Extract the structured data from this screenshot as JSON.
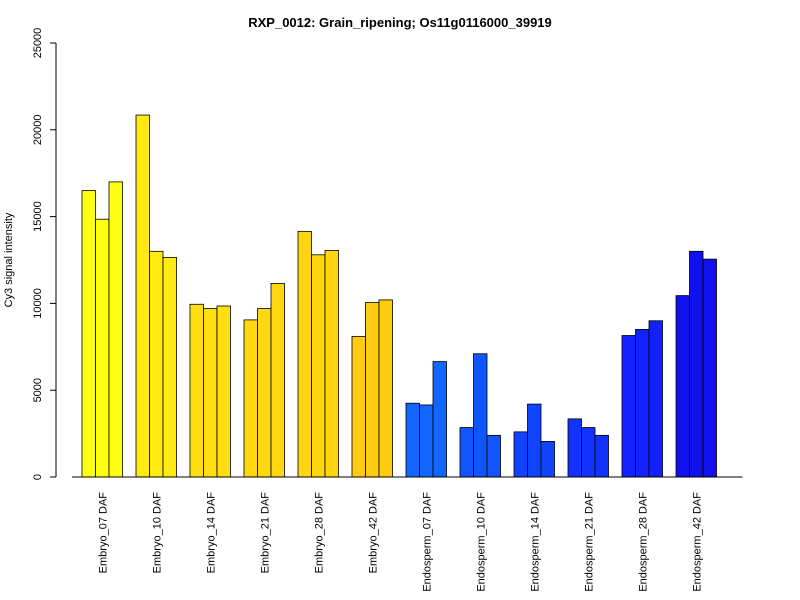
{
  "chart_data": {
    "type": "bar",
    "title": "RXP_0012: Grain_ripening; Os11g0116000_39919",
    "xlabel": "",
    "ylabel": "Cy3 signal intensity",
    "ylim": [
      0,
      25000
    ],
    "y_ticks": [
      "0",
      "5000",
      "10000",
      "15000",
      "20000",
      "25000"
    ],
    "categories": [
      "Embryo_07 DAF",
      "Embryo_10 DAF",
      "Embryo_14 DAF",
      "Embryo_21 DAF",
      "Embryo_28 DAF",
      "Embryo_42 DAF",
      "Endosperm_07 DAF",
      "Endosperm_10 DAF",
      "Endosperm_14 DAF",
      "Endosperm_21 DAF",
      "Endosperm_28 DAF",
      "Endosperm_42 DAF"
    ],
    "replicates_per_category": 3,
    "values": [
      [
        16500,
        14850,
        17000
      ],
      [
        20850,
        13000,
        12650
      ],
      [
        9950,
        9700,
        9850
      ],
      [
        9050,
        9700,
        11150
      ],
      [
        14150,
        12800,
        13050
      ],
      [
        8100,
        10050,
        10200
      ],
      [
        4250,
        4150,
        6650
      ],
      [
        2850,
        7100,
        2400
      ],
      [
        2600,
        4200,
        2050
      ],
      [
        3350,
        2850,
        2400
      ],
      [
        8150,
        8500,
        9000
      ],
      [
        10450,
        13000,
        12550
      ]
    ],
    "colors": [
      "#FFFF11",
      "#FFEA11",
      "#FFDF11",
      "#FFD811",
      "#FFD411",
      "#FFCC11",
      "#1166FF",
      "#1155FF",
      "#1144FF",
      "#1133FF",
      "#1122FF",
      "#1111EE"
    ],
    "grid": false,
    "legend": "none"
  }
}
